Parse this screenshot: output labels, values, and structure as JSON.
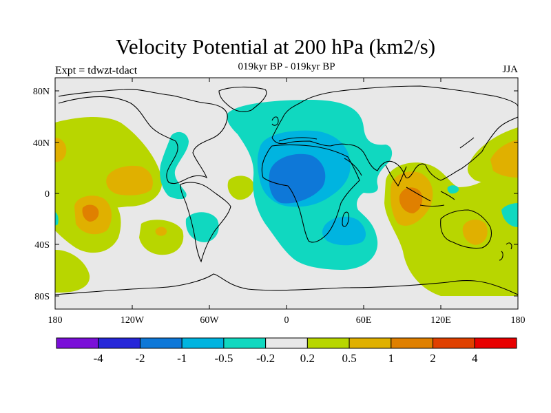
{
  "title": "Velocity Potential at 200 hPa (km2/s)",
  "subtitle": "019kyr BP - 019kyr BP",
  "left_label": "Expt = tdwzt-tdact",
  "right_label": "JJA",
  "map": {
    "projection": "cylindrical-equidistant",
    "lon_range": [
      -180,
      180
    ],
    "lat_range": [
      -90,
      90
    ],
    "lat_ticks": [
      "80N",
      "40N",
      "0",
      "40S",
      "80S"
    ],
    "lon_ticks": [
      "180",
      "120W",
      "60W",
      "0",
      "60E",
      "120E",
      "180"
    ],
    "background_color": "#e8e8e8"
  },
  "colorbar": {
    "colors": [
      "#7a0fd8",
      "#2626d8",
      "#0e78d8",
      "#00b4e0",
      "#10d8c0",
      "#e8e8e8",
      "#b8d600",
      "#e0b000",
      "#e08000",
      "#e04000",
      "#e80000"
    ],
    "labels": [
      "-4",
      "-2",
      "-1",
      "-0.5",
      "-0.2",
      "0.2",
      "0.5",
      "1",
      "2",
      "4"
    ]
  }
}
